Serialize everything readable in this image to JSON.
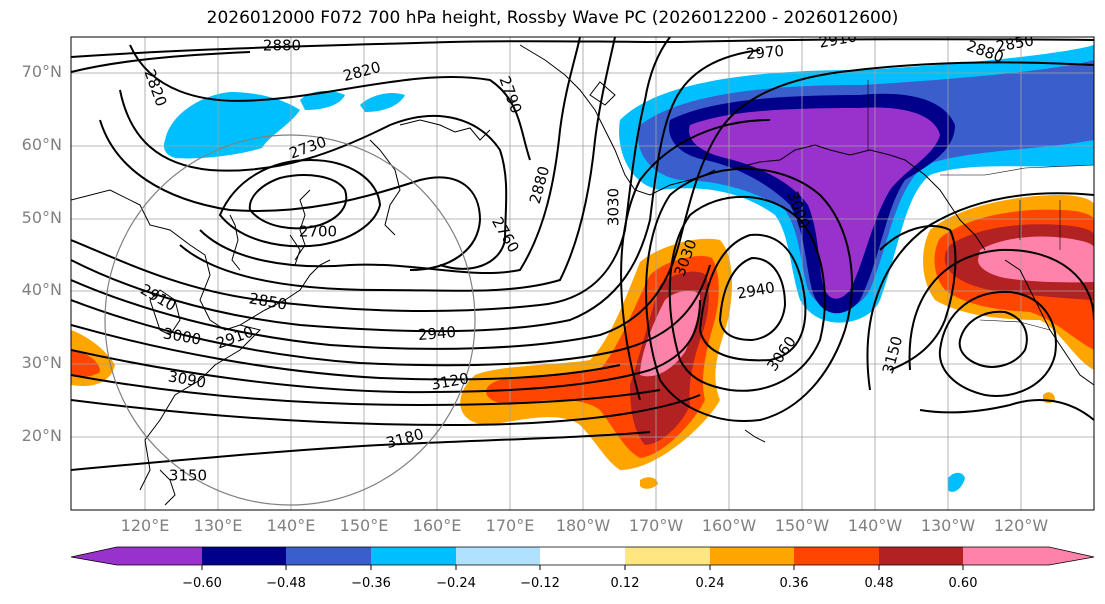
{
  "title": "2026012000 F072 700 hPa height, Rossby Wave PC (2026012200 - 2026012600)",
  "map": {
    "lat_labels": [
      "70°N",
      "60°N",
      "50°N",
      "40°N",
      "30°N",
      "20°N"
    ],
    "lon_labels": [
      "120°E",
      "130°E",
      "140°E",
      "150°E",
      "160°E",
      "170°E",
      "180°W",
      "170°W",
      "160°W",
      "150°W",
      "140°W",
      "130°W",
      "120°W"
    ],
    "contour_labels": [
      "2880",
      "2820",
      "2820",
      "2790",
      "2970",
      "2910",
      "2880",
      "2850",
      "2730",
      "2700",
      "2760",
      "2880",
      "3030",
      "3000",
      "2850",
      "2910",
      "2910",
      "3000",
      "2940",
      "2940",
      "3030",
      "3060",
      "3150",
      "3120",
      "3090",
      "3180",
      "3150"
    ]
  },
  "colorbar": {
    "ticks": [
      "−0.60",
      "−0.48",
      "−0.36",
      "−0.24",
      "−0.12",
      "0.12",
      "0.24",
      "0.36",
      "0.48",
      "0.60"
    ],
    "colors": [
      "#9932cc",
      "#00008b",
      "#3a5fcd",
      "#00bfff",
      "#b0e2ff",
      "#ffffff",
      "#ffe680",
      "#ffa500",
      "#ff4500",
      "#b22222",
      "#ff82ab"
    ]
  }
}
